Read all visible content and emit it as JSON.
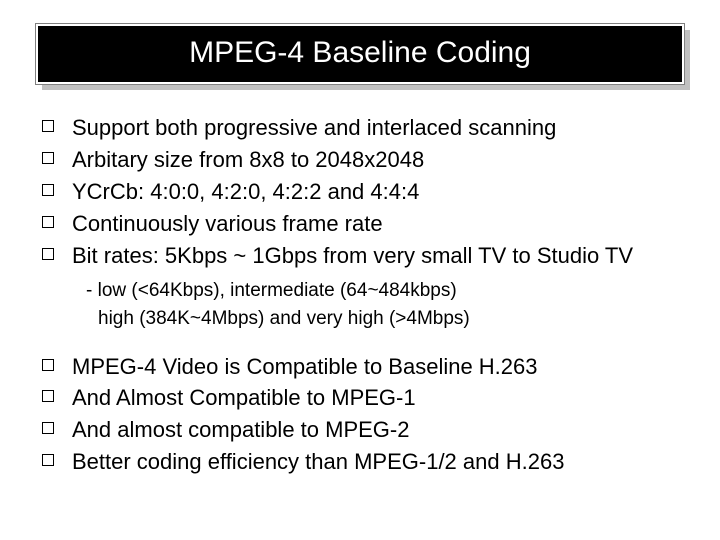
{
  "title": "MPEG-4 Baseline Coding",
  "group1": [
    "Support both progressive and interlaced scanning",
    "Arbitary size from 8x8 to 2048x2048",
    "YCrCb: 4:0:0, 4:2:0, 4:2:2 and 4:4:4",
    "Continuously various frame rate",
    "Bit rates: 5Kbps ~ 1Gbps from very small TV to Studio TV"
  ],
  "sub": {
    "l1": "- low (<64Kbps), intermediate (64~484kbps)",
    "l2": "high (384K~4Mbps) and very high (>4Mbps)"
  },
  "group2": [
    "MPEG-4 Video is Compatible to Baseline H.263",
    "And Almost Compatible to MPEG-1",
    "And almost compatible to MPEG-2",
    "Better coding efficiency than MPEG-1/2 and H.263"
  ],
  "colors": {
    "background": "#ffffff",
    "title_bg": "#000000",
    "title_text": "#ffffff",
    "shadow": "#c0c0c0",
    "text": "#000000"
  },
  "typography": {
    "title_fontsize": 30,
    "bullet_fontsize": 22,
    "sub_fontsize": 19,
    "font_family": "Arial"
  }
}
